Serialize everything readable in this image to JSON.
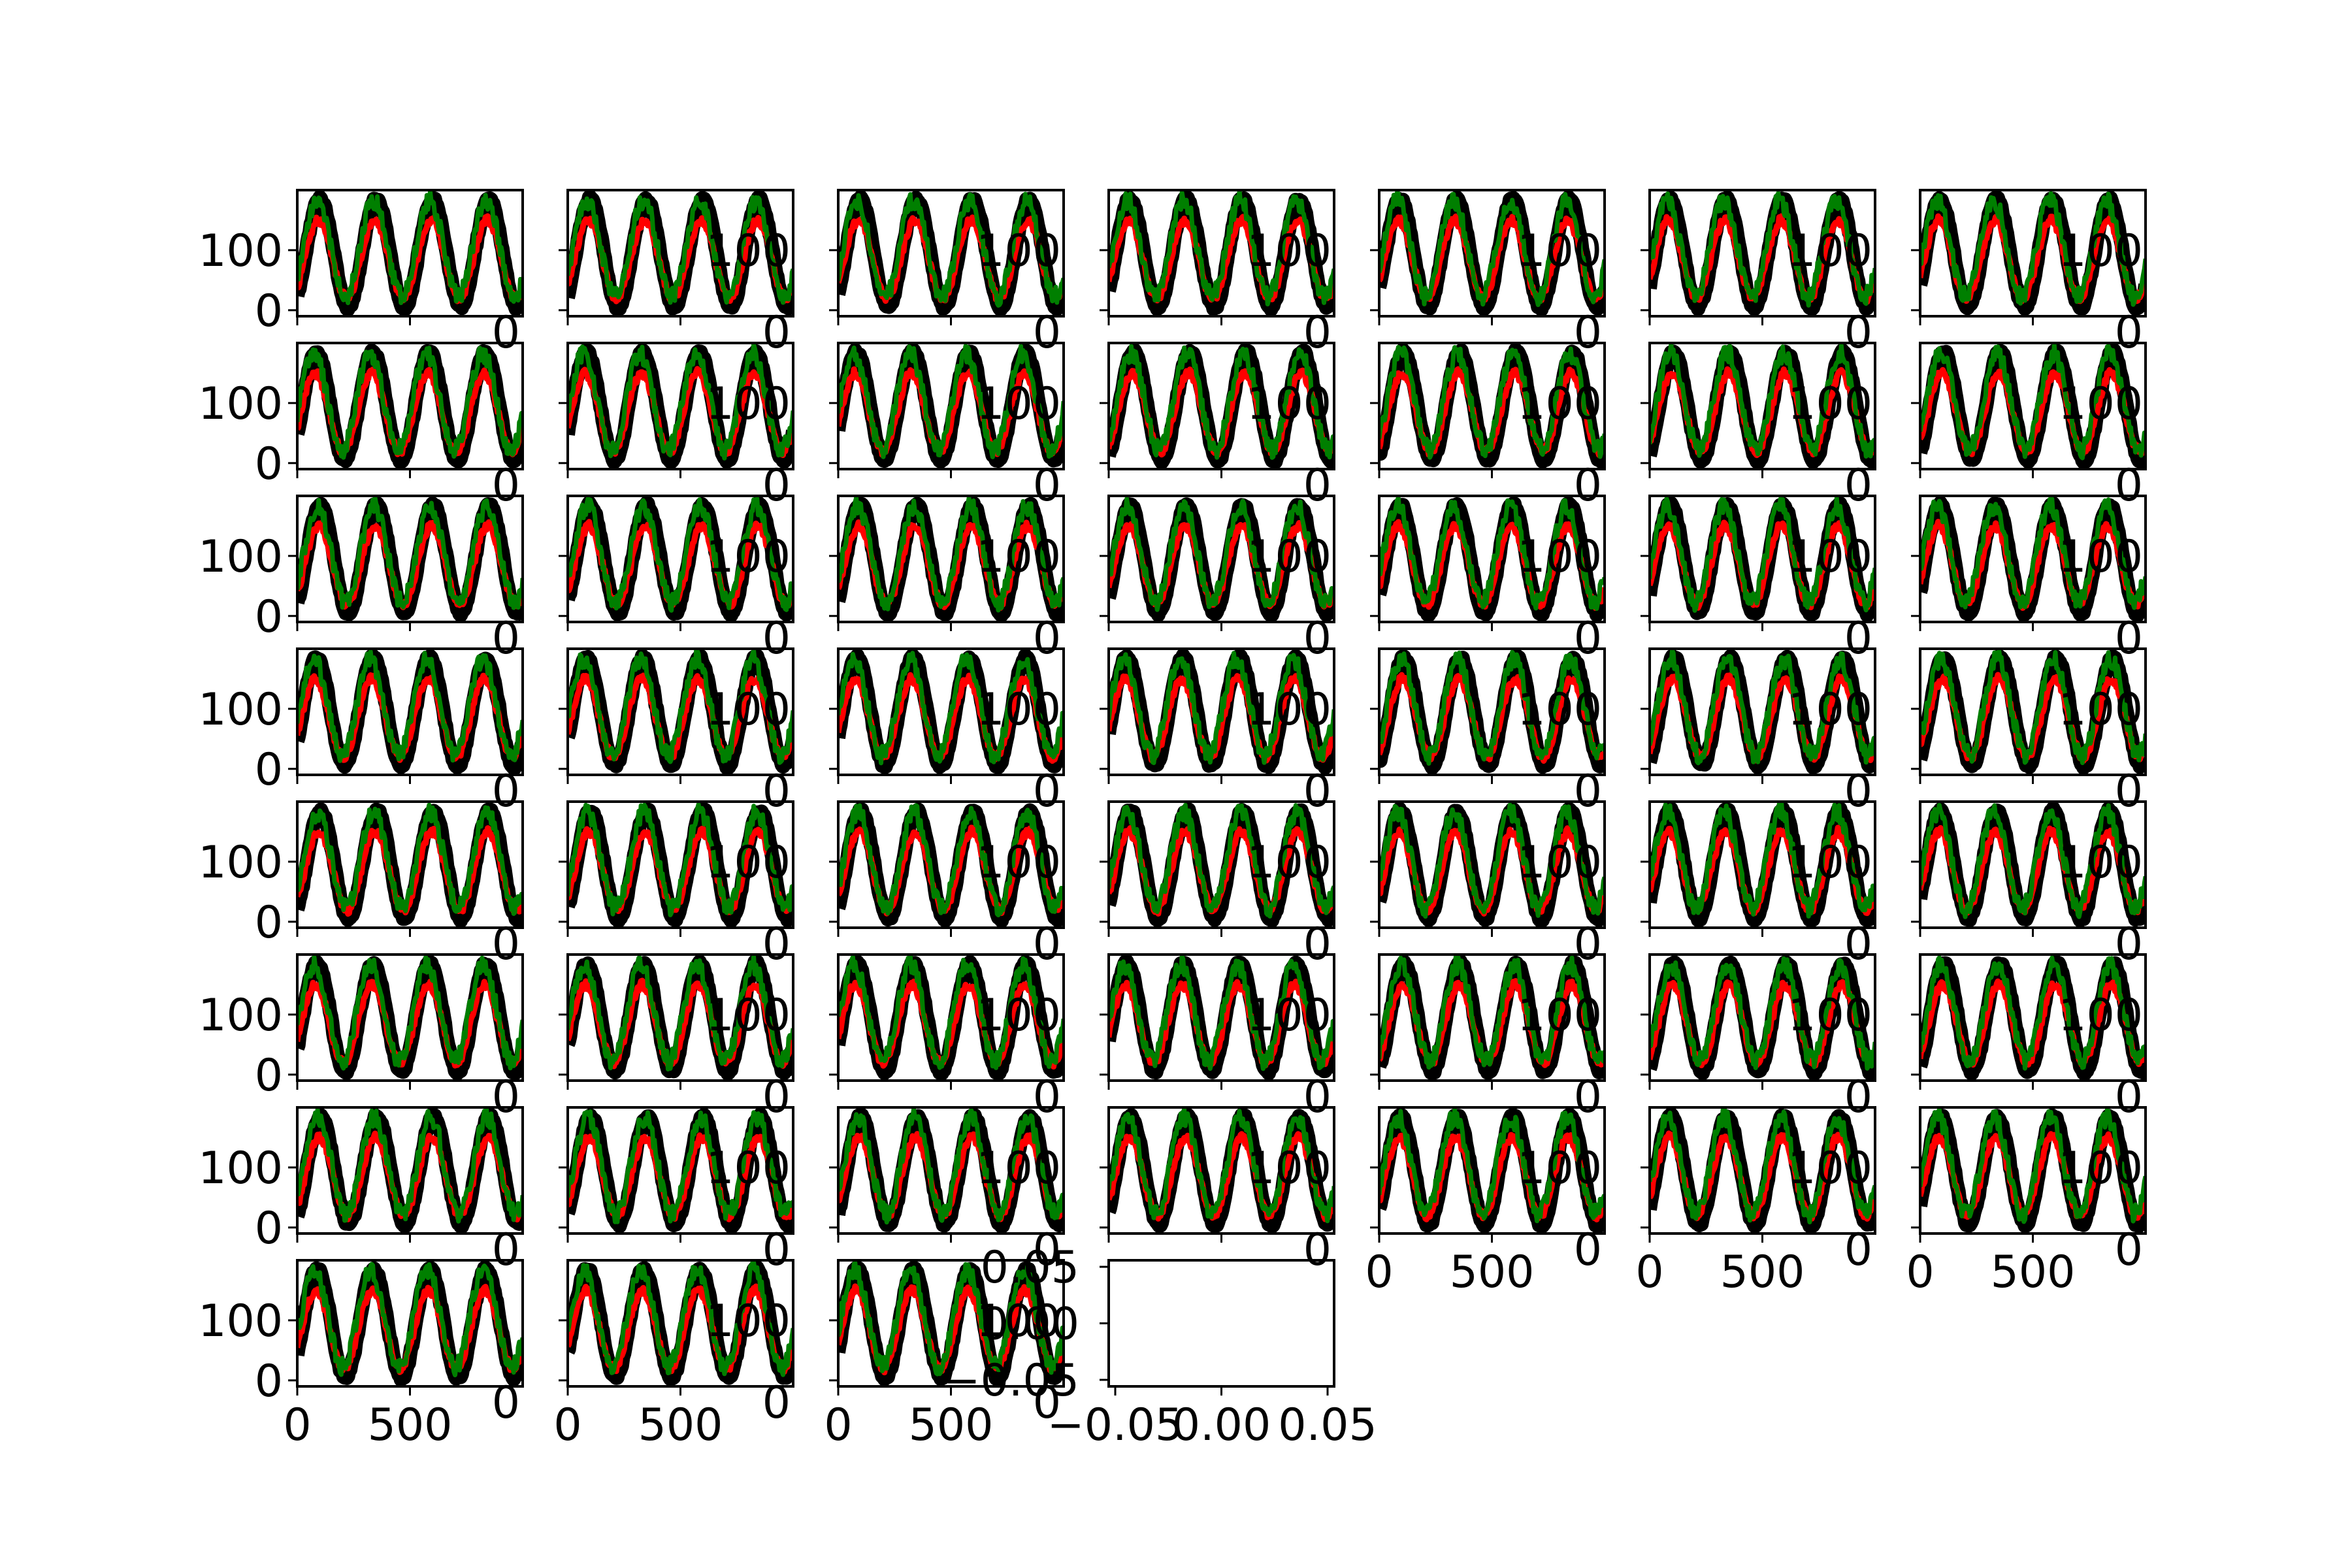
{
  "chart_data": {
    "type": "line",
    "layout": {
      "rows": 8,
      "cols": 7
    },
    "panel_count": 56,
    "filled_panels": 52,
    "colors": {
      "black_series": "#000000",
      "red_series": "#ff0000",
      "green_series": "#007f00",
      "frame": "#000000"
    },
    "x_range": [
      0,
      1000
    ],
    "y_range": [
      -10,
      200
    ],
    "y_ticks": [
      "100",
      "0"
    ],
    "x_ticks": [
      "0",
      "500"
    ],
    "overlay_ticks": [
      "100",
      "0"
    ],
    "empty_axes": {
      "y_ticks": [
        "0.05",
        "0.00",
        "0.05"
      ],
      "y_tick_signs": [
        "",
        "",
        "−"
      ],
      "x_ticks": [
        "−0.05",
        "0.00",
        "0.05"
      ]
    },
    "series_shape": {
      "cycles": 4,
      "black": {
        "low": 5,
        "high": 185
      },
      "red": {
        "low": 20,
        "high": 150
      },
      "green": {
        "low": 15,
        "high": 175
      }
    }
  }
}
